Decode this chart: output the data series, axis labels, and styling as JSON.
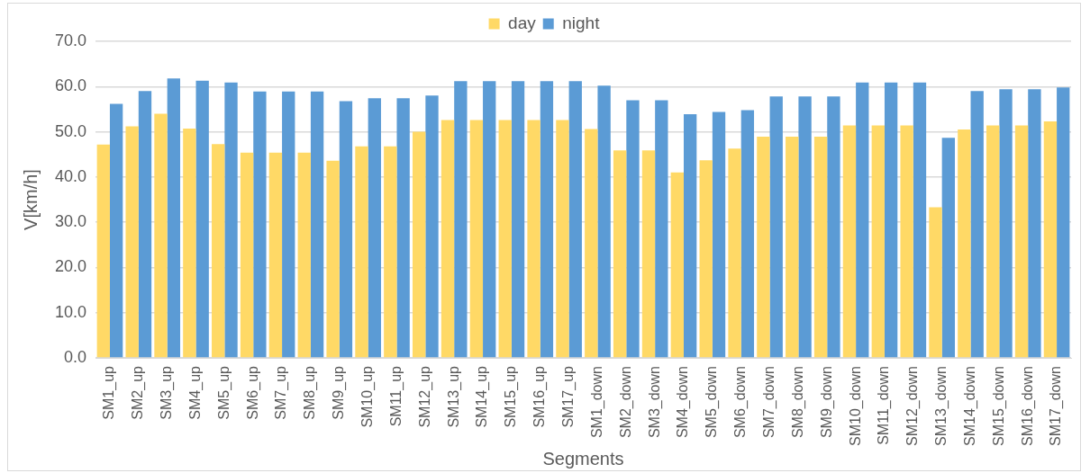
{
  "chart_data": {
    "type": "bar",
    "xlabel": "Segments",
    "ylabel": "V[km/h]",
    "categories": [
      "SM1_up",
      "SM2_up",
      "SM3_up",
      "SM4_up",
      "SM5_up",
      "SM6_up",
      "SM7_up",
      "SM8_up",
      "SM9_up",
      "SM10_up",
      "SM11_up",
      "SM12_up",
      "SM13_up",
      "SM14_up",
      "SM15_up",
      "SM16_up",
      "SM17_up",
      "SM1_down",
      "SM2_down",
      "SM3_down",
      "SM4_down",
      "SM5_down",
      "SM6_down",
      "SM7_down",
      "SM8_down",
      "SM9_down",
      "SM10_down",
      "SM11_down",
      "SM12_down",
      "SM13_down",
      "SM14_down",
      "SM15_down",
      "SM16_down",
      "SM17_down"
    ],
    "series": [
      {
        "name": "day",
        "color": "#ffd966",
        "values": [
          47.2,
          51.2,
          54.0,
          50.7,
          47.3,
          45.4,
          45.4,
          45.4,
          43.6,
          46.8,
          46.8,
          50.0,
          52.6,
          52.6,
          52.6,
          52.6,
          52.6,
          50.6,
          45.9,
          45.9,
          41.0,
          43.7,
          46.3,
          48.9,
          48.9,
          48.9,
          51.4,
          51.4,
          51.4,
          33.3,
          50.5,
          51.4,
          51.4,
          52.3
        ]
      },
      {
        "name": "night",
        "color": "#5b9bd5",
        "values": [
          56.2,
          59.0,
          61.8,
          61.3,
          60.9,
          58.9,
          58.9,
          58.9,
          56.8,
          57.4,
          57.4,
          58.0,
          61.2,
          61.2,
          61.2,
          61.2,
          61.2,
          60.2,
          57.0,
          57.0,
          53.9,
          54.4,
          54.8,
          57.8,
          57.8,
          57.8,
          60.9,
          60.9,
          60.9,
          48.7,
          59.0,
          59.4,
          59.4,
          59.8
        ]
      }
    ],
    "ylim": [
      0,
      70
    ],
    "yticks": [
      {
        "value": 0,
        "label": "0.0"
      },
      {
        "value": 10,
        "label": "10.0"
      },
      {
        "value": 20,
        "label": "20.0"
      },
      {
        "value": 30,
        "label": "30.0"
      },
      {
        "value": 40,
        "label": "40.0"
      },
      {
        "value": 50,
        "label": "50.0"
      },
      {
        "value": 60,
        "label": "60.0"
      },
      {
        "value": 70,
        "label": "70.0"
      }
    ],
    "grid": "y",
    "legend": "top"
  }
}
